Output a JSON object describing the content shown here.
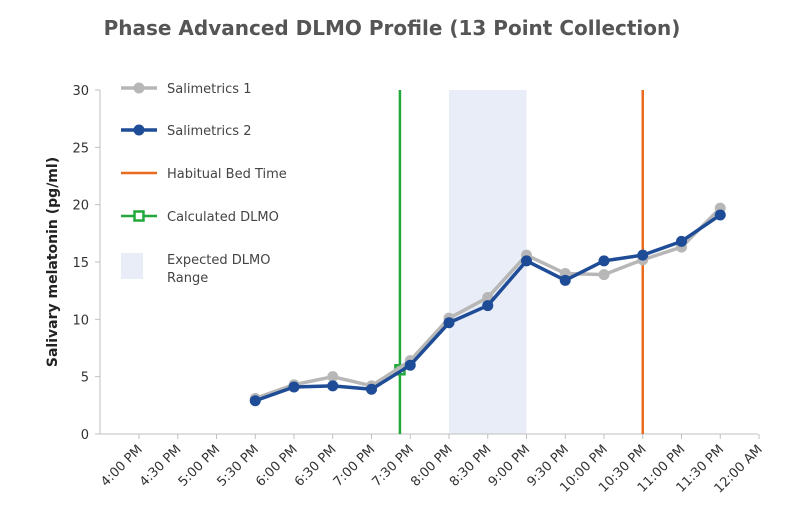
{
  "chart_data": {
    "type": "line",
    "title": "Phase Advanced DLMO Profile (13 Point Collection)",
    "ylabel": "Salivary melatonin (pg/ml)",
    "xlabel": "",
    "ylim": [
      0,
      30
    ],
    "yticks": [
      0,
      5,
      10,
      15,
      20,
      25,
      30
    ],
    "categories": [
      "4:00 PM",
      "4:30 PM",
      "5:00 PM",
      "5:30 PM",
      "6:00 PM",
      "6:30 PM",
      "7:00 PM",
      "7:30 PM",
      "8:00 PM",
      "8:30 PM",
      "9:00 PM",
      "9:30 PM",
      "10:00 PM",
      "10:30 PM",
      "11:00 PM",
      "11:30 PM",
      "12:00 AM"
    ],
    "series": [
      {
        "name": "Salimetrics 1",
        "color": "#b7b7b7",
        "marker": "circle",
        "points": [
          {
            "x": "5:30 PM",
            "y": 3.1
          },
          {
            "x": "6:00 PM",
            "y": 4.3
          },
          {
            "x": "6:30 PM",
            "y": 5.0
          },
          {
            "x": "7:00 PM",
            "y": 4.2
          },
          {
            "x": "7:30 PM",
            "y": 6.4
          },
          {
            "x": "8:00 PM",
            "y": 10.1
          },
          {
            "x": "8:30 PM",
            "y": 11.9
          },
          {
            "x": "9:00 PM",
            "y": 15.6
          },
          {
            "x": "9:30 PM",
            "y": 14.0
          },
          {
            "x": "10:00 PM",
            "y": 13.9
          },
          {
            "x": "10:30 PM",
            "y": 15.2
          },
          {
            "x": "11:00 PM",
            "y": 16.3
          },
          {
            "x": "11:30 PM",
            "y": 19.7
          }
        ]
      },
      {
        "name": "Salimetrics 2",
        "color": "#1f4c96",
        "marker": "circle",
        "points": [
          {
            "x": "5:30 PM",
            "y": 2.9
          },
          {
            "x": "6:00 PM",
            "y": 4.1
          },
          {
            "x": "6:30 PM",
            "y": 4.2
          },
          {
            "x": "7:00 PM",
            "y": 3.9
          },
          {
            "x": "7:30 PM",
            "y": 6.0
          },
          {
            "x": "8:00 PM",
            "y": 9.7
          },
          {
            "x": "8:30 PM",
            "y": 11.2
          },
          {
            "x": "9:00 PM",
            "y": 15.1
          },
          {
            "x": "9:30 PM",
            "y": 13.4
          },
          {
            "x": "10:00 PM",
            "y": 15.1
          },
          {
            "x": "10:30 PM",
            "y": 15.6
          },
          {
            "x": "11:00 PM",
            "y": 16.8
          },
          {
            "x": "11:30 PM",
            "y": 19.1
          }
        ]
      }
    ],
    "reference_lines": [
      {
        "name": "Habitual Bed Time",
        "x": "10:30 PM",
        "color": "#e86b1f"
      },
      {
        "name": "Calculated DLMO",
        "x": "7:22 PM",
        "y": 5.6,
        "color": "#22a83a"
      }
    ],
    "shaded_range": {
      "name": "Expected DLMO Range",
      "from": "8:00 PM",
      "to": "9:00 PM",
      "color": "#e8edf8"
    },
    "legend_position": "top-left",
    "grid": false
  }
}
